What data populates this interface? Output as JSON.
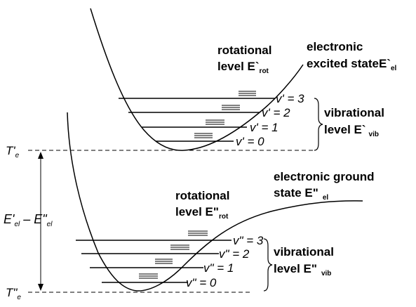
{
  "excited": {
    "rot_label_1": "rotational",
    "rot_label_2": "level E`",
    "rot_sub": "rot",
    "state_label_1": "electronic",
    "state_label_2": "excited stateE`",
    "state_sub": "el",
    "vib_label_1": "vibrational",
    "vib_label_2": "level E`",
    "vib_sub": "vib",
    "levels": [
      "v' = 3",
      "v' = 2",
      "v' = 1",
      "v' = 0"
    ]
  },
  "ground": {
    "rot_label_1": "rotational",
    "rot_label_2": "level E\"",
    "rot_sub": "rot",
    "state_label_1": "electronic ground",
    "state_label_2": "state E\"",
    "state_sub": "el",
    "vib_label_1": "vibrational",
    "vib_label_2": "level E\"",
    "vib_sub": "vib",
    "levels": [
      "v\" = 3",
      "v\" = 2",
      "v\" = 1",
      "v\" = 0"
    ]
  },
  "axis": {
    "te_excited": "T'",
    "te_ground": "T\"",
    "te_sub": "e",
    "energy_label_a": "E'",
    "energy_label_b": "el",
    "energy_label_minus": " – E\"",
    "energy_label_c": "el"
  }
}
